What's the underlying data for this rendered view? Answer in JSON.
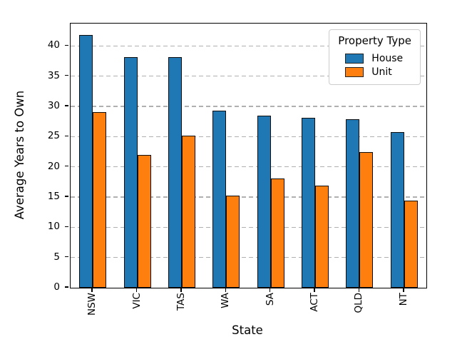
{
  "chart_data": {
    "type": "bar",
    "title": "",
    "xlabel": "State",
    "ylabel": "Average Years to Own",
    "categories": [
      "NSW",
      "VIC",
      "TAS",
      "WA",
      "SA",
      "ACT",
      "QLD",
      "NT"
    ],
    "series": [
      {
        "name": "House",
        "color": "#1f77b4",
        "values": [
          41.8,
          38.2,
          38.1,
          29.3,
          28.5,
          28.1,
          27.9,
          25.8
        ]
      },
      {
        "name": "Unit",
        "color": "#ff7f0e",
        "values": [
          29.0,
          22.0,
          25.1,
          15.2,
          18.1,
          16.9,
          22.4,
          14.4
        ]
      }
    ],
    "ylim": [
      0,
      43.7
    ],
    "yticks": [
      0,
      5,
      10,
      15,
      20,
      25,
      30,
      35,
      40
    ],
    "grid": "horizontal-dashed",
    "grid_color": "#b0b0b0",
    "bar_edge_color": "#0d0d0d",
    "legend": {
      "title": "Property Type",
      "position": "upper-right"
    }
  }
}
